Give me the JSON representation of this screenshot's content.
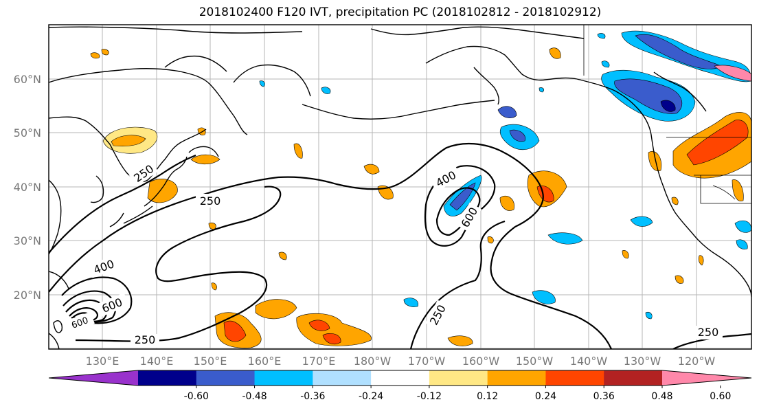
{
  "title": "2018102400 F120 IVT, precipitation PC (2018102812 - 2018102912)",
  "lat_labels": [
    "60°N",
    "50°N",
    "40°N",
    "30°N",
    "20°N"
  ],
  "lon_labels": [
    "130°E",
    "140°E",
    "150°E",
    "160°E",
    "170°E",
    "180°W",
    "170°W",
    "160°W",
    "150°W",
    "140°W",
    "130°W",
    "120°W"
  ],
  "contour_labels": [
    "250",
    "250",
    "250",
    "250",
    "250",
    "400",
    "400",
    "600",
    "600",
    "600"
  ],
  "colorbar": {
    "ticks": [
      "-0.60",
      "-0.48",
      "-0.36",
      "-0.24",
      "-0.12",
      "0.12",
      "0.24",
      "0.36",
      "0.48",
      "0.60"
    ],
    "colors": [
      "#9932cc",
      "#00008b",
      "#3a5ccc",
      "#00bfff",
      "#b0e0ff",
      "#ffffff",
      "#ffe885",
      "#ffa500",
      "#ff4500",
      "#b22222",
      "#ff88aa"
    ]
  },
  "shading_colors": {
    "light_yellow": "#ffe885",
    "orange": "#ffa500",
    "red_orange": "#ff4500",
    "light_blue": "#b0e0ff",
    "sky_blue": "#00bfff",
    "mid_blue": "#3a5ccc",
    "dark_blue": "#00008b"
  }
}
